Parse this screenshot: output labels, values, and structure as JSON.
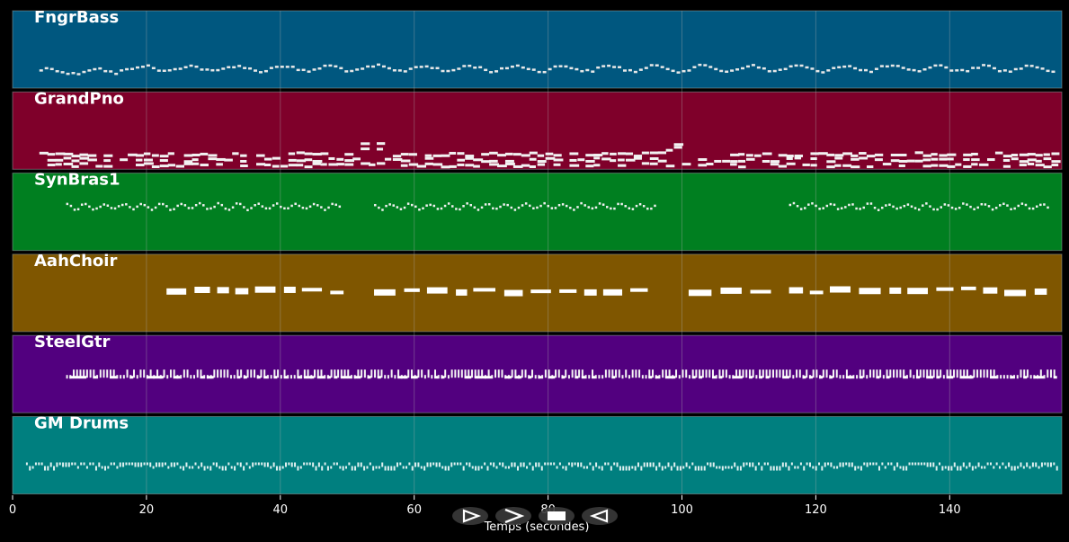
{
  "chart_data": {
    "type": "piano-roll",
    "xlabel": "Temps (secondes)",
    "xlim": [
      0,
      157
    ],
    "x_ticks": [
      0,
      20,
      40,
      60,
      80,
      100,
      120,
      140
    ],
    "grid": "vertical",
    "tracks": [
      {
        "name": "FngrBass",
        "color": "#00577f",
        "style": "bass",
        "segments": [
          [
            4,
            156
          ]
        ]
      },
      {
        "name": "GrandPno",
        "color": "#7f002a",
        "style": "piano",
        "segments": [
          [
            4,
            156
          ]
        ]
      },
      {
        "name": "SynBras1",
        "color": "#007f20",
        "style": "brass",
        "segments": [
          [
            8,
            49
          ],
          [
            54,
            96
          ],
          [
            116,
            155
          ]
        ]
      },
      {
        "name": "AahChoir",
        "color": "#7f5600",
        "style": "choir",
        "segments": [
          [
            23,
            50
          ],
          [
            54,
            96
          ],
          [
            101,
            112
          ],
          [
            116,
            155
          ]
        ]
      },
      {
        "name": "SteelGtr",
        "color": "#52007f",
        "style": "guitar",
        "segments": [
          [
            8,
            156
          ]
        ]
      },
      {
        "name": "GM Drums",
        "color": "#007f7f",
        "style": "drums",
        "segments": [
          [
            2,
            156
          ]
        ]
      }
    ]
  },
  "controls": [
    {
      "name": "play-button",
      "icon": "play-icon"
    },
    {
      "name": "next-button",
      "icon": "chevron-right-icon"
    },
    {
      "name": "stop-button",
      "icon": "stop-icon"
    },
    {
      "name": "rewind-button",
      "icon": "rewind-icon"
    }
  ]
}
